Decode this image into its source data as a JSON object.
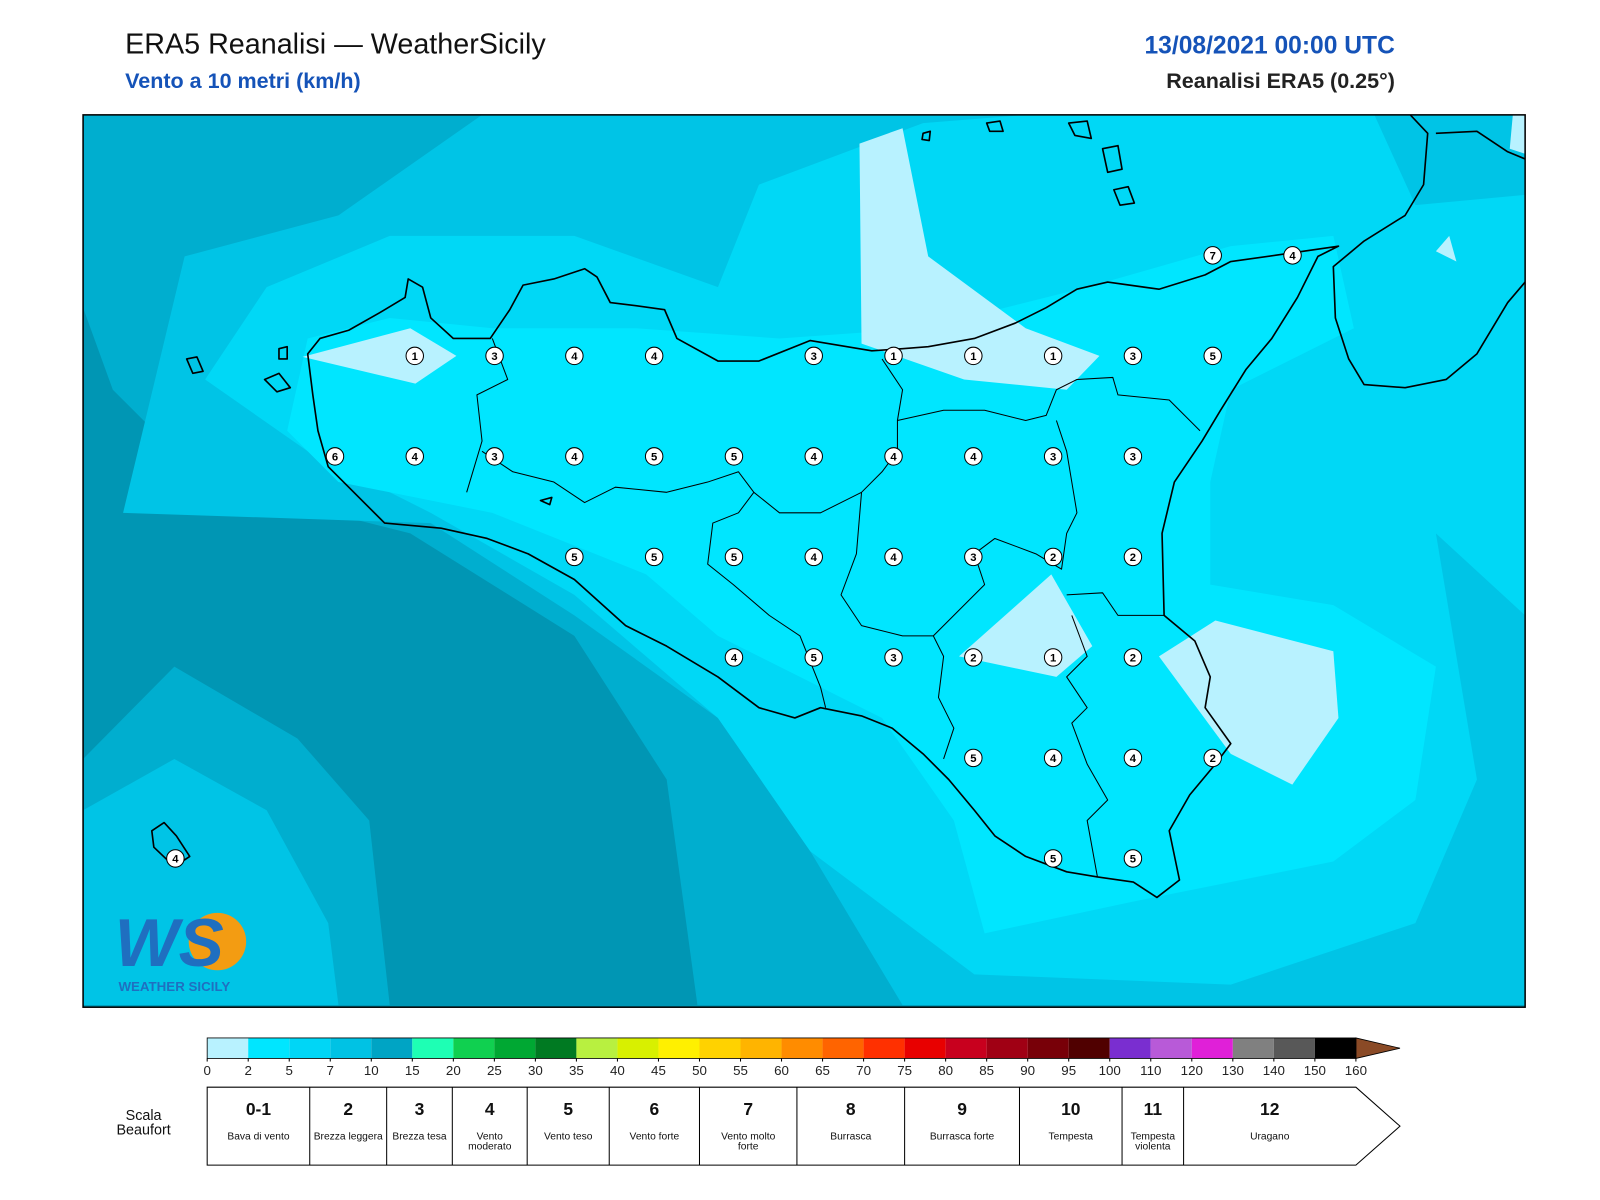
{
  "header": {
    "title": "ERA5 Reanalisi — WeatherSicily",
    "subtitle": "Vento a 10 metri (km/h)",
    "date": "13/08/2021 00:00 UTC",
    "source": "Reanalisi ERA5 (0.25°)"
  },
  "stations": [
    7,
    4,
    1,
    3,
    4,
    4,
    3,
    1,
    1,
    1,
    3,
    5,
    6,
    4,
    3,
    4,
    5,
    5,
    4,
    4,
    4,
    3,
    3,
    5,
    5,
    5,
    4,
    4,
    3,
    2,
    2,
    4,
    5,
    3,
    2,
    1,
    2,
    5,
    4,
    4,
    2,
    4,
    5,
    5
  ],
  "logo": {
    "mark": "WS",
    "text": "WEATHER SICILY"
  },
  "colorbar": {
    "ticks": [
      0,
      2,
      5,
      7,
      10,
      15,
      20,
      25,
      30,
      35,
      40,
      45,
      50,
      55,
      60,
      65,
      70,
      75,
      80,
      85,
      90,
      95,
      100,
      110,
      120,
      130,
      140,
      150,
      160
    ],
    "colors": [
      "#b8f2ff",
      "#00e6ff",
      "#00d6f6",
      "#00c2e4",
      "#00a4c4",
      "#1effb4",
      "#10d050",
      "#00a833",
      "#007a22",
      "#b8f040",
      "#d8f000",
      "#fff000",
      "#ffd200",
      "#ffb400",
      "#ff8c00",
      "#ff6400",
      "#ff3000",
      "#e80000",
      "#c8001e",
      "#a00014",
      "#780008",
      "#500000",
      "#7a2ed0",
      "#b85ad8",
      "#e020d8",
      "#808080",
      "#585858",
      "#000000",
      "#8a4a26",
      "#c8884a"
    ]
  },
  "beaufort": {
    "label": "Scala Beaufort",
    "entries": [
      {
        "force": "0-1",
        "desc": "Bava di vento"
      },
      {
        "force": "2",
        "desc": "Brezza leggera"
      },
      {
        "force": "3",
        "desc": "Brezza tesa"
      },
      {
        "force": "4",
        "desc": "Vento moderato"
      },
      {
        "force": "5",
        "desc": "Vento teso"
      },
      {
        "force": "6",
        "desc": "Vento forte"
      },
      {
        "force": "7",
        "desc": "Vento molto forte"
      },
      {
        "force": "8",
        "desc": "Burrasca"
      },
      {
        "force": "9",
        "desc": "Burrasca forte"
      },
      {
        "force": "10",
        "desc": "Tempesta"
      },
      {
        "force": "11",
        "desc": "Tempesta violenta"
      },
      {
        "force": "12",
        "desc": "Uragano"
      }
    ]
  }
}
